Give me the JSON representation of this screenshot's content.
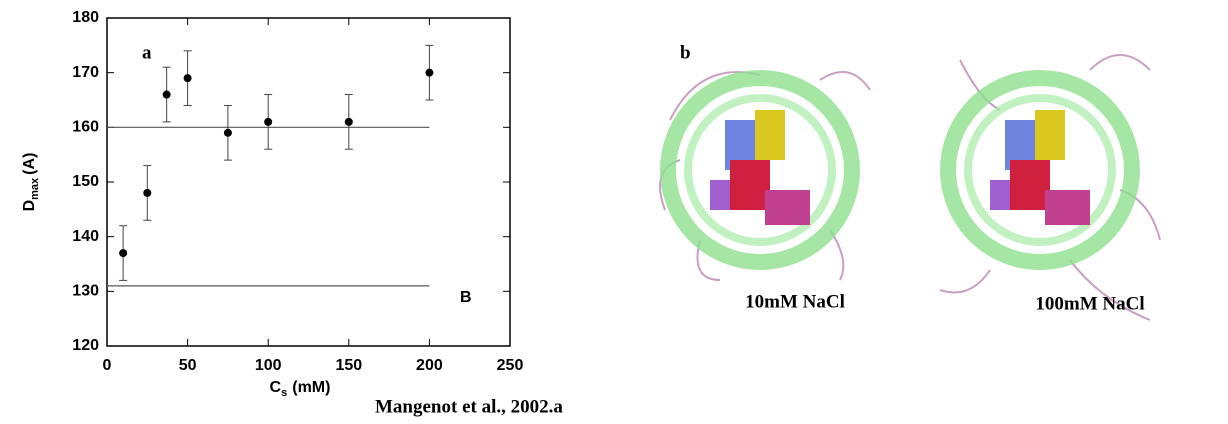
{
  "chart_data": {
    "type": "scatter",
    "panel_label": "a",
    "x": [
      10,
      25,
      37,
      50,
      75,
      100,
      150,
      200
    ],
    "values": [
      137,
      148,
      166,
      169,
      159,
      161,
      161,
      170
    ],
    "errors": [
      5,
      5,
      5,
      5,
      5,
      5,
      5,
      5
    ],
    "color": "#000000",
    "xlim": [
      0,
      250
    ],
    "xticks": [
      0,
      50,
      100,
      150,
      200,
      250
    ],
    "ylim": [
      120,
      180
    ],
    "yticks": [
      120,
      130,
      140,
      150,
      160,
      170,
      180
    ],
    "reference_lines": [
      160,
      131
    ],
    "annotation": "B",
    "xlabel": {
      "main": "C",
      "sub": "s",
      "unit": "(mM)"
    },
    "ylabel": {
      "main": "D",
      "sub": "max",
      "unit": "(A)"
    }
  },
  "panel_b": {
    "label": "b",
    "captions": [
      "10mM NaCl",
      "100mM NaCl"
    ]
  },
  "credit": "Mangenot et al., 2002.a"
}
